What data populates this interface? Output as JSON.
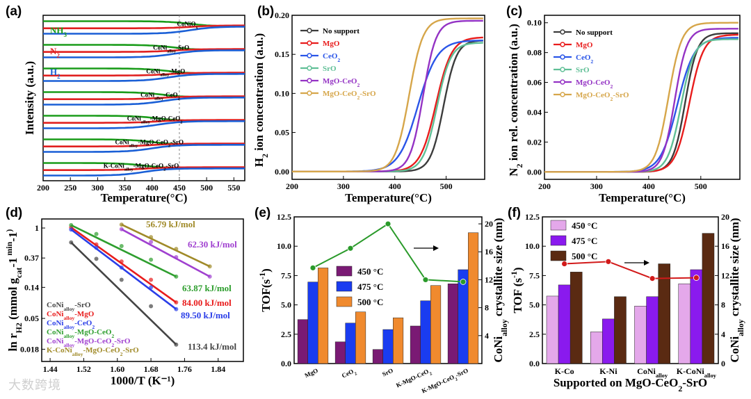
{
  "watermark": "大数跨境",
  "chart_data": [
    {
      "id": "a",
      "panel_label": "(a)",
      "type": "line",
      "xlabel": "Temperature(°C)",
      "ylabel": "Intensity (a.u.)",
      "xlim": [
        200,
        570
      ],
      "xticks": [
        200,
        250,
        300,
        350,
        400,
        450,
        500,
        550
      ],
      "legend": [
        {
          "name": "NH3",
          "color": "#1a9c1a"
        },
        {
          "name": "N2",
          "color": "#e02020"
        },
        {
          "name": "H2",
          "color": "#1a5fd6"
        }
      ],
      "species_labels": [
        "NH",
        "3",
        "N",
        "2",
        "H",
        "2"
      ],
      "samples": [
        {
          "label": "CoNiO",
          "sub": "x",
          "mid": 470
        },
        {
          "label": "CoNi",
          "sub": "alloy",
          "rest": "-SrO",
          "mid": 440
        },
        {
          "label": "CoNi",
          "sub": "alloy",
          "rest": "-MgO",
          "mid": 430
        },
        {
          "label": "CoNi",
          "sub": "alloy",
          "rest": "-CeO",
          "sub2": "2",
          "mid": 420
        },
        {
          "label": "CoNi",
          "sub": "alloy",
          "rest": "-MgO-CeO",
          "sub2": "2",
          "mid": 410
        },
        {
          "label": "CoNi",
          "sub": "alloy",
          "rest": "-MgO-CeO",
          "sub2": "2",
          "rest2": "-SrO",
          "mid": 400
        },
        {
          "label": "K-CoNi",
          "sub": "alloy",
          "rest": "-MgO-CeO",
          "sub2": "2",
          "rest2": "-SrO",
          "mid": 385
        }
      ]
    },
    {
      "id": "b",
      "panel_label": "(b)",
      "type": "line",
      "xlabel": "Temperature(°C)",
      "ylabel": "H2 ion concentration (a.u.)",
      "ylabel_parts": [
        "H",
        "2",
        " ion concentration (a.u.)"
      ],
      "xlim": [
        200,
        575
      ],
      "ylim": [
        -0.01,
        0.2
      ],
      "xticks": [
        200,
        300,
        400,
        500
      ],
      "yticks": [
        0.0,
        0.05,
        0.1,
        0.15,
        0.2
      ],
      "series": [
        {
          "name": "No support",
          "color": "#3c3c3c",
          "mid": 495,
          "width": 28,
          "max": 0.168
        },
        {
          "name": "MgO",
          "color": "#e81c1c",
          "mid": 480,
          "width": 34,
          "max": 0.172
        },
        {
          "name": "CeO2",
          "color": "#2a55e8",
          "mid": 445,
          "width": 42,
          "max": 0.168
        },
        {
          "name": "SrO",
          "color": "#5fbf96",
          "mid": 482,
          "width": 30,
          "max": 0.165
        },
        {
          "name": "MgO-CeO2",
          "color": "#9433c4",
          "mid": 455,
          "width": 28,
          "max": 0.193
        },
        {
          "name": "MgO-CeO2-SrO",
          "color": "#d6a64a",
          "mid": 428,
          "width": 30,
          "max": 0.196
        }
      ],
      "legend_text": [
        [
          "No support"
        ],
        [
          "MgO"
        ],
        [
          "CeO",
          "2"
        ],
        [
          "SrO"
        ],
        [
          "MgO-CeO",
          "2"
        ],
        [
          "MgO-CeO",
          "2",
          "-SrO"
        ]
      ]
    },
    {
      "id": "c",
      "panel_label": "(c)",
      "type": "line",
      "xlabel": "Temperature(°C)",
      "ylabel": "N2 ion rel. concentration (a.u.)",
      "ylabel_parts": [
        "N",
        "2",
        " ion rel. concentration (a.u.)"
      ],
      "xlim": [
        200,
        575
      ],
      "ylim": [
        -0.005,
        0.105
      ],
      "xticks": [
        200,
        300,
        400,
        500
      ],
      "yticks": [
        0.0,
        0.02,
        0.04,
        0.06,
        0.08,
        0.1
      ],
      "series": [
        {
          "name": "No support",
          "color": "#3c3c3c",
          "mid": 470,
          "width": 26,
          "max": 0.093
        },
        {
          "name": "MgO",
          "color": "#e81c1c",
          "mid": 478,
          "width": 30,
          "max": 0.092
        },
        {
          "name": "CeO2",
          "color": "#2a55e8",
          "mid": 455,
          "width": 36,
          "max": 0.09
        },
        {
          "name": "SrO",
          "color": "#5fbf96",
          "mid": 462,
          "width": 28,
          "max": 0.089
        },
        {
          "name": "MgO-CeO2",
          "color": "#9433c4",
          "mid": 450,
          "width": 26,
          "max": 0.096
        },
        {
          "name": "MgO-CeO2-SrO",
          "color": "#d6a64a",
          "mid": 438,
          "width": 28,
          "max": 0.1
        }
      ],
      "legend_text": [
        [
          "No support"
        ],
        [
          "MgO"
        ],
        [
          "CeO",
          "2"
        ],
        [
          "SrO"
        ],
        [
          "MgO-CeO",
          "2"
        ],
        [
          "MgO-CeO",
          "2",
          "-SrO"
        ]
      ]
    },
    {
      "id": "d",
      "panel_label": "(d)",
      "type": "scatter",
      "xlabel": "1000/T (K⁻¹)",
      "ylabel": "ln rH2 (mmol gcat-1 min-1)",
      "ylabel_parts": [
        "ln r",
        "H2",
        " (mmol g",
        "cat",
        "-1",
        " min",
        "-1",
        ")"
      ],
      "xlim": [
        1.42,
        1.9
      ],
      "xticks": [
        1.44,
        1.52,
        1.6,
        1.68,
        1.76,
        1.84
      ],
      "ytick_labels": [
        "1",
        "0.37",
        "0.14",
        "0.05",
        "0.018"
      ],
      "ytick_values": [
        1,
        0.37,
        0.14,
        0.05,
        0.018
      ],
      "ylim_log": [
        0.012,
        1.35
      ],
      "series": [
        {
          "name": "CoNi_alloy-SrO",
          "color": "#444444",
          "x": [
            1.49,
            1.55,
            1.61,
            1.68,
            1.74
          ],
          "y": [
            0.62,
            0.36,
            0.18,
            0.075,
            0.021
          ],
          "Ea": "113.4 kJ/mol"
        },
        {
          "name": "CoNi_alloy-MgO",
          "color": "#e81c1c",
          "x": [
            1.49,
            1.55,
            1.61,
            1.68,
            1.74
          ],
          "y": [
            1.02,
            0.58,
            0.33,
            0.18,
            0.085
          ],
          "Ea": "84.00 kJ/mol"
        },
        {
          "name": "CoNi_alloy-CeO2",
          "color": "#2a3ee8",
          "x": [
            1.49,
            1.55,
            1.61,
            1.68,
            1.74
          ],
          "y": [
            0.95,
            0.52,
            0.27,
            0.14,
            0.068
          ],
          "Ea": "89.50 kJ/mol"
        },
        {
          "name": "CoNi_alloy-MgO-CeO2",
          "color": "#2e9e2e",
          "x": [
            1.49,
            1.55,
            1.61,
            1.68,
            1.74
          ],
          "y": [
            1.1,
            0.82,
            0.55,
            0.35,
            0.2
          ],
          "Ea": "63.87 kJ/mol"
        },
        {
          "name": "CoNi_alloy-MgO-CeO2-SrO",
          "color": "#a040d0",
          "x": [
            1.61,
            1.68,
            1.74,
            1.82
          ],
          "y": [
            0.96,
            0.63,
            0.38,
            0.2
          ],
          "Ea": "62.30 kJ/mol"
        },
        {
          "name": "K-CoNi_alloy-MgO-CeO2-SrO",
          "color": "#a08a28",
          "x": [
            1.61,
            1.68,
            1.74,
            1.82
          ],
          "y": [
            1.12,
            0.74,
            0.5,
            0.28
          ],
          "Ea": "56.79 kJ/mol"
        }
      ],
      "legend_text": [
        [
          "CoNi",
          "alloy",
          "-SrO"
        ],
        [
          "CoNi",
          "alloy",
          "-MgO"
        ],
        [
          "CoNi",
          "alloy",
          "-CeO",
          "2"
        ],
        [
          "CoNi",
          "alloy",
          "-MgO-CeO",
          "2"
        ],
        [
          "CoNi",
          "alloy",
          "-MgO-CeO",
          "2",
          "-SrO"
        ],
        [
          "K-CoNi",
          "alloy",
          "-MgO-CeO",
          "2",
          "-SrO"
        ]
      ]
    },
    {
      "id": "e",
      "panel_label": "(e)",
      "type": "bar",
      "ylabel": "TOF(s⁻¹)",
      "ylabel_parts": [
        "TOF(s",
        "-1",
        ")"
      ],
      "y2label": "CoNi alloy crystallite size (nm)",
      "y2label_parts": [
        "CoNi",
        "alloy",
        " crystallite size (nm)"
      ],
      "ylim": [
        0,
        12.5
      ],
      "yticks": [
        0.0,
        2.5,
        5.0,
        7.5,
        10.0,
        12.5
      ],
      "y2lim": [
        0,
        21
      ],
      "y2ticks": [
        4,
        8,
        12,
        16,
        20
      ],
      "categories": [
        "MgO",
        "CeO2",
        "SrO",
        "K-MgO-CeO2",
        "K-MgO-CeO2-SrO"
      ],
      "category_labels": [
        [
          "MgO"
        ],
        [
          "CeO",
          "2"
        ],
        [
          "SrO"
        ],
        [
          "K-MgO-CeO",
          "2"
        ],
        [
          "K-MgO-CeO",
          "2",
          "-SrO"
        ]
      ],
      "series": [
        {
          "name": "450 °C",
          "color": "#7a1a74",
          "values": [
            3.75,
            1.85,
            1.2,
            3.2,
            6.8
          ]
        },
        {
          "name": "475 °C",
          "color": "#1a3cf0",
          "values": [
            6.95,
            3.45,
            2.9,
            5.35,
            8.0
          ]
        },
        {
          "name": "500 °C",
          "color": "#f08a2e",
          "values": [
            8.15,
            4.4,
            3.9,
            6.65,
            11.15
          ]
        }
      ],
      "crystallite": {
        "color": "#2a9a2a",
        "values": [
          13.7,
          16.5,
          20.0,
          12.0,
          11.7
        ]
      }
    },
    {
      "id": "f",
      "panel_label": "(f)",
      "type": "bar",
      "xlabel": "Supported on MgO-CeO2-SrO",
      "xlabel_parts": [
        "Supported on MgO-CeO",
        "2",
        "-SrO"
      ],
      "ylabel": "TOF (s⁻¹)",
      "ylabel_parts": [
        "TOF (s",
        "-1",
        ")"
      ],
      "y2label": "CoNi alloy crystallite size (nm)",
      "y2label_parts": [
        "CoNi",
        "alloy",
        " crystallite size (nm)"
      ],
      "ylim": [
        0,
        12.5
      ],
      "yticks": [
        0.0,
        2.5,
        5.0,
        7.5,
        10.0,
        12.5
      ],
      "y2lim": [
        0,
        20
      ],
      "y2ticks": [
        0,
        4,
        8,
        12,
        16,
        20
      ],
      "categories": [
        "K-Co",
        "K-Ni",
        "CoNi alloy",
        "K-CoNi alloy"
      ],
      "category_labels": [
        [
          "K-Co"
        ],
        [
          "K-Ni"
        ],
        [
          "CoNi",
          "alloy"
        ],
        [
          "K-CoNi",
          "alloy"
        ]
      ],
      "series": [
        {
          "name": "450 °C",
          "color": "#e4a8ea",
          "values": [
            5.75,
            2.7,
            4.9,
            6.8
          ]
        },
        {
          "name": "475 °C",
          "color": "#8a1aee",
          "values": [
            6.7,
            3.8,
            5.7,
            8.0
          ]
        },
        {
          "name": "500 °C",
          "color": "#5a2a12",
          "values": [
            7.8,
            5.7,
            8.5,
            11.1
          ]
        }
      ],
      "crystallite": {
        "color": "#d21a1a",
        "values": [
          13.6,
          13.9,
          11.6,
          11.7
        ]
      }
    }
  ]
}
